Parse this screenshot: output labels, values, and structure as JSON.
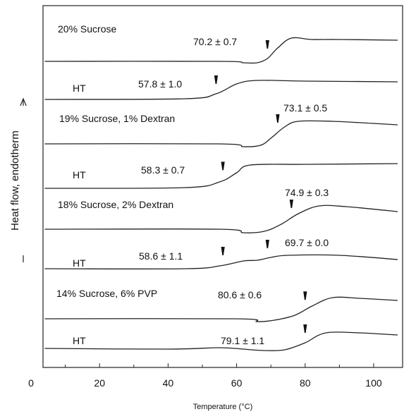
{
  "chart_data": {
    "type": "line",
    "xlabel": "Temperature (°C)",
    "ylabel": "Heat flow, endotherm",
    "xlim": [
      0,
      107
    ],
    "x_ticks": [
      "0",
      "20",
      "40",
      "60",
      "80",
      "100"
    ],
    "y_ticks_shown": false,
    "grid": false,
    "legend": "none",
    "curve_color": "#222222",
    "series": [
      {
        "name": "20% Sucrose",
        "label": "70.2 ± 0.7",
        "tg_markers": [
          69
        ],
        "points": [
          [
            4,
            87
          ],
          [
            55,
            87
          ],
          [
            62,
            89
          ],
          [
            66,
            89
          ],
          [
            69,
            83
          ],
          [
            72,
            68
          ],
          [
            76,
            54
          ],
          [
            82,
            56
          ],
          [
            90,
            56
          ],
          [
            107,
            57
          ]
        ]
      },
      {
        "name": "HT",
        "label": "57.8 ± 1.0",
        "tg_markers": [
          54
        ],
        "points": [
          [
            4,
            141
          ],
          [
            45,
            140
          ],
          [
            54,
            133
          ],
          [
            60,
            119
          ],
          [
            66,
            114
          ],
          [
            80,
            115
          ],
          [
            107,
            116
          ]
        ]
      },
      {
        "name": "19% Sucrose, 1% Dextran",
        "label": "73.1 ± 0.5",
        "tg_markers": [
          72
        ],
        "points": [
          [
            4,
            204
          ],
          [
            55,
            204
          ],
          [
            62,
            208
          ],
          [
            67,
            206
          ],
          [
            70,
            196
          ],
          [
            74,
            180
          ],
          [
            78,
            172
          ],
          [
            88,
            172
          ],
          [
            100,
            175
          ],
          [
            107,
            177
          ]
        ]
      },
      {
        "name": "HT",
        "label": "58.3 ± 0.7",
        "tg_markers": [
          56
        ],
        "points": [
          [
            4,
            267
          ],
          [
            45,
            266
          ],
          [
            55,
            258
          ],
          [
            60,
            245
          ],
          [
            64,
            234
          ],
          [
            80,
            233
          ],
          [
            107,
            232
          ]
        ]
      },
      {
        "name": "18% Sucrose, 2% Dextran",
        "label": "74.9 ± 0.3",
        "tg_markers": [
          76
        ],
        "points": [
          [
            4,
            325
          ],
          [
            55,
            325
          ],
          [
            62,
            330
          ],
          [
            68,
            328
          ],
          [
            73,
            318
          ],
          [
            78,
            303
          ],
          [
            84,
            292
          ],
          [
            92,
            293
          ],
          [
            107,
            300
          ]
        ]
      },
      {
        "name": "HT",
        "label": "58.6 ± 1.1",
        "second_label": "69.7 ± 0.0",
        "tg_markers": [
          56,
          69
        ],
        "points": [
          [
            4,
            381
          ],
          [
            45,
            381
          ],
          [
            55,
            377
          ],
          [
            62,
            370
          ],
          [
            66,
            369
          ],
          [
            70,
            365
          ],
          [
            75,
            362
          ],
          [
            90,
            362
          ],
          [
            107,
            368
          ]
        ]
      },
      {
        "name": "14% Sucrose, 6% PVP",
        "label": "80.6 ± 0.6",
        "tg_markers": [
          80
        ],
        "points": [
          [
            4,
            452
          ],
          [
            60,
            452
          ],
          [
            66,
            456
          ],
          [
            71,
            454
          ],
          [
            77,
            447
          ],
          [
            82,
            434
          ],
          [
            88,
            422
          ],
          [
            96,
            423
          ],
          [
            107,
            426
          ]
        ]
      },
      {
        "name": "HT",
        "label": "79.1 ± 1.1",
        "tg_markers": [
          80
        ],
        "points": [
          [
            4,
            494
          ],
          [
            40,
            495
          ],
          [
            55,
            493
          ],
          [
            62,
            495
          ],
          [
            68,
            497
          ],
          [
            74,
            496
          ],
          [
            80,
            486
          ],
          [
            86,
            472
          ],
          [
            96,
            472
          ],
          [
            107,
            475
          ]
        ]
      }
    ]
  }
}
